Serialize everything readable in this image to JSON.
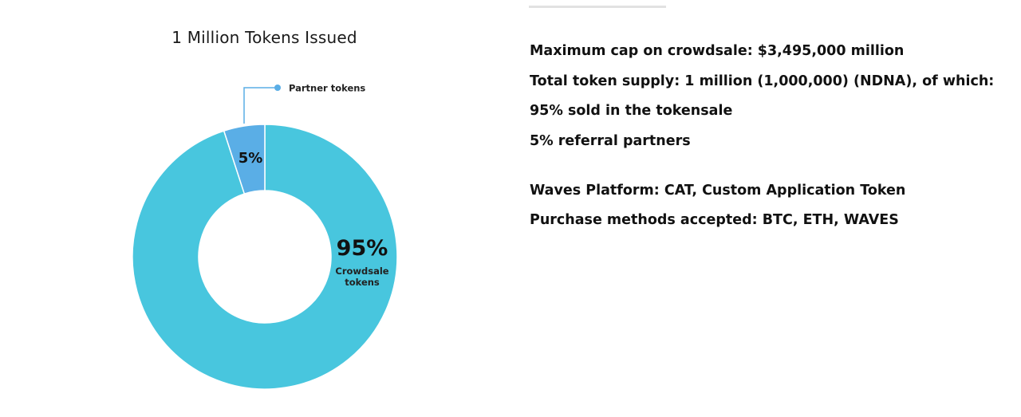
{
  "chart_data": {
    "type": "pie",
    "style": "donut",
    "title": "1 Million Tokens Issued",
    "slices": [
      {
        "label_lines": [
          "Crowdsale",
          "tokens"
        ],
        "value": 95,
        "value_label": "95%",
        "color": "#48c6de"
      },
      {
        "label_lines": [
          "Partner tokens"
        ],
        "value": 5,
        "value_label": "5%",
        "color": "#5aaee6"
      }
    ],
    "legend": "callout"
  },
  "info": {
    "lines": [
      "Maximum cap on crowdsale: $3,495,000 million",
      "Total token supply: 1 million (1,000,000) (NDNA), of which:",
      "95% sold in the tokensale",
      "5% referral partners",
      "Waves Platform: CAT, Custom Application Token",
      "Purchase methods accepted: BTC, ETH, WAVES"
    ]
  }
}
